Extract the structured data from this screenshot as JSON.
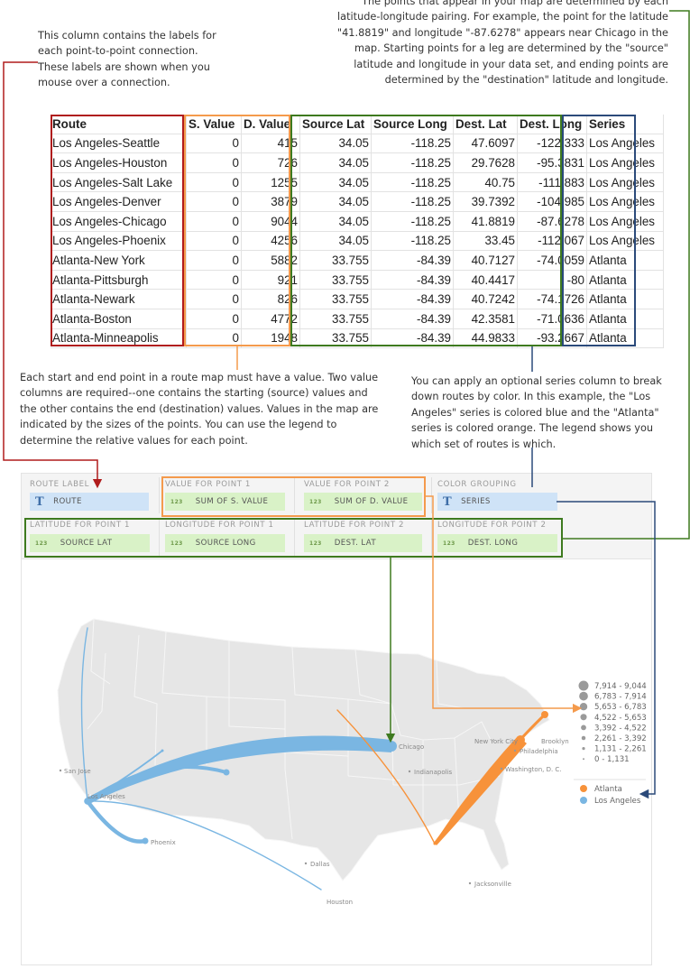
{
  "annotations": {
    "labels_note": [
      "This column contains the labels for",
      "each point-to-point connection.",
      "These labels are shown when you",
      "mouse over a connection."
    ],
    "points_note": [
      "The points that appear in your map are determined by each",
      "latitude-longitude pairing. For example, the point for the latitude",
      "\"41.8819\" and longitude \"-87.6278\" appears near Chicago in the",
      "map. Starting points for a leg are determined by the \"source\"",
      "latitude and longitude in your data set, and ending points are",
      "determined by the \"destination\" latitude and longitude."
    ],
    "values_note": [
      "Each start and end point in a route map must have a value. Two value",
      "columns are required--one contains the starting (source) values and",
      "the other contains the end (destination) values. Values in the map are",
      "indicated by the sizes of the points. You can use the legend to",
      "determine the relative values for each point."
    ],
    "series_note": [
      "You can apply an optional series column to break",
      "down routes by color. In this example, the \"Los",
      "Angeles\" series is colored blue and the \"Atlanta\"",
      "series is colored orange. The legend shows you",
      "which set of routes is which."
    ]
  },
  "table": {
    "headers": [
      "Route",
      "S. Value",
      "D. Value",
      "Source Lat",
      "Source Long",
      "Dest. Lat",
      "Dest. Long",
      "Series"
    ],
    "rows": [
      [
        "Los Angeles-Seattle",
        "0",
        "415",
        "34.05",
        "-118.25",
        "47.6097",
        "-122.333",
        "Los Angeles"
      ],
      [
        "Los Angeles-Houston",
        "0",
        "726",
        "34.05",
        "-118.25",
        "29.7628",
        "-95.3831",
        "Los Angeles"
      ],
      [
        "Los Angeles-Salt Lake",
        "0",
        "1255",
        "34.05",
        "-118.25",
        "40.75",
        "-111.883",
        "Los Angeles"
      ],
      [
        "Los Angeles-Denver",
        "0",
        "3879",
        "34.05",
        "-118.25",
        "39.7392",
        "-104.985",
        "Los Angeles"
      ],
      [
        "Los Angeles-Chicago",
        "0",
        "9044",
        "34.05",
        "-118.25",
        "41.8819",
        "-87.6278",
        "Los Angeles"
      ],
      [
        "Los Angeles-Phoenix",
        "0",
        "4256",
        "34.05",
        "-118.25",
        "33.45",
        "-112.067",
        "Los Angeles"
      ],
      [
        "Atlanta-New York",
        "0",
        "5882",
        "33.755",
        "-84.39",
        "40.7127",
        "-74.0059",
        "Atlanta"
      ],
      [
        "Atlanta-Pittsburgh",
        "0",
        "921",
        "33.755",
        "-84.39",
        "40.4417",
        "-80",
        "Atlanta"
      ],
      [
        "Atlanta-Newark",
        "0",
        "826",
        "33.755",
        "-84.39",
        "40.7242",
        "-74.1726",
        "Atlanta"
      ],
      [
        "Atlanta-Boston",
        "0",
        "4772",
        "33.755",
        "-84.39",
        "42.3581",
        "-71.0636",
        "Atlanta"
      ],
      [
        "Atlanta-Minneapolis",
        "0",
        "1948",
        "33.755",
        "-84.39",
        "44.9833",
        "-93.2667",
        "Atlanta"
      ]
    ]
  },
  "panel": {
    "slots": [
      {
        "label": "ROUTE LABEL",
        "field": "ROUTE",
        "kind": "text"
      },
      {
        "label": "VALUE FOR POINT 1",
        "field": "SUM OF S. VALUE",
        "kind": "num"
      },
      {
        "label": "VALUE FOR POINT 2",
        "field": "SUM OF D. VALUE",
        "kind": "num"
      },
      {
        "label": "COLOR GROUPING",
        "field": "SERIES",
        "kind": "text"
      },
      {
        "label": "LATITUDE FOR POINT 1",
        "field": "SOURCE LAT",
        "kind": "num"
      },
      {
        "label": "LONGITUDE FOR POINT 1",
        "field": "SOURCE LONG",
        "kind": "num"
      },
      {
        "label": "LATITUDE FOR POINT 2",
        "field": "DEST. LAT",
        "kind": "num"
      },
      {
        "label": "LONGITUDE FOR POINT 2",
        "field": "DEST. LONG",
        "kind": "num"
      }
    ],
    "text_icon": "T",
    "num_icon": "123"
  },
  "map": {
    "cities": [
      "San Jose",
      "Los Angeles",
      "Phoenix",
      "Dallas",
      "Houston",
      "Chicago",
      "Indianapolis",
      "New York City",
      "Brooklyn",
      "Philadelphia",
      "Washington, D. C.",
      "Jacksonville"
    ],
    "legend": {
      "size_ranges": [
        "7,914 - 9,044",
        "6,783 - 7,914",
        "5,653 - 6,783",
        "4,522 - 5,653",
        "3,392 - 4,522",
        "2,261 - 3,392",
        "1,131 - 2,261",
        "0 - 1,131"
      ],
      "series": [
        {
          "name": "Atlanta",
          "color": "#f7923a"
        },
        {
          "name": "Los Angeles",
          "color": "#7ab6e2"
        }
      ]
    }
  },
  "colors": {
    "red": "#b01c1c",
    "orange": "#f49a4c",
    "green": "#3e7a1f",
    "navy": "#2b4a7a",
    "la_blue": "#7ab6e2",
    "atl_orange": "#f7923a",
    "land": "#e6e6e6"
  }
}
